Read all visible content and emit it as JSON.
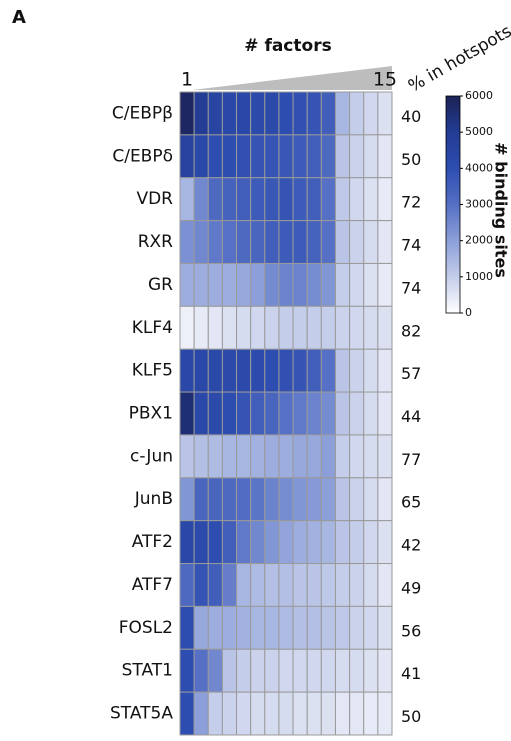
{
  "chart_data": {
    "type": "heatmap",
    "panel_label": "A",
    "title": "# factors",
    "columns": [
      1,
      null,
      null,
      null,
      null,
      null,
      null,
      null,
      null,
      null,
      null,
      null,
      null,
      null,
      15
    ],
    "rows": [
      "C/EBPβ",
      "C/EBPδ",
      "VDR",
      "RXR",
      "GR",
      "KLF4",
      "KLF5",
      "PBX1",
      "c-Jun",
      "JunB",
      "ATF2",
      "ATF7",
      "FOSL2",
      "STAT1",
      "STAT5A"
    ],
    "values": [
      [
        5800,
        5000,
        4500,
        4300,
        4300,
        4200,
        4200,
        4000,
        3900,
        3800,
        3500,
        1500,
        1000,
        800,
        600
      ],
      [
        4600,
        4300,
        4000,
        4000,
        3900,
        3800,
        3800,
        3700,
        3600,
        3500,
        3200,
        1200,
        900,
        700,
        500
      ],
      [
        1500,
        2500,
        3200,
        3400,
        3500,
        3600,
        3700,
        3800,
        3600,
        3500,
        3000,
        1100,
        800,
        600,
        400
      ],
      [
        2300,
        2500,
        2800,
        3000,
        3200,
        3300,
        3500,
        3600,
        3600,
        3400,
        3000,
        1200,
        900,
        700,
        500
      ],
      [
        1700,
        1700,
        1700,
        1700,
        1800,
        2000,
        2400,
        2600,
        2600,
        2400,
        2200,
        1000,
        800,
        600,
        400
      ],
      [
        300,
        400,
        500,
        600,
        700,
        800,
        900,
        1000,
        1000,
        1000,
        1000,
        900,
        800,
        700,
        600
      ],
      [
        4300,
        4300,
        4300,
        4200,
        4200,
        4100,
        4000,
        3900,
        3800,
        3500,
        3000,
        1200,
        900,
        700,
        500
      ],
      [
        5500,
        4300,
        4200,
        4000,
        3800,
        3500,
        3300,
        3000,
        2800,
        2600,
        2400,
        1200,
        900,
        700,
        500
      ],
      [
        1200,
        1300,
        1400,
        1500,
        1500,
        1600,
        1700,
        1700,
        1800,
        1800,
        2000,
        1000,
        800,
        700,
        600
      ],
      [
        2200,
        3300,
        3300,
        3200,
        3100,
        2900,
        2600,
        2400,
        2200,
        2100,
        2000,
        1200,
        900,
        700,
        500
      ],
      [
        4300,
        4200,
        4000,
        3500,
        2800,
        2500,
        2200,
        1900,
        1700,
        1600,
        1500,
        1200,
        1000,
        800,
        600
      ],
      [
        3200,
        3800,
        3500,
        2700,
        1500,
        1400,
        1300,
        1300,
        1200,
        1200,
        1100,
        1000,
        900,
        700,
        500
      ],
      [
        4000,
        1800,
        1700,
        1700,
        1600,
        1500,
        1500,
        1400,
        1300,
        1300,
        1200,
        1100,
        900,
        800,
        600
      ],
      [
        4000,
        3000,
        2500,
        1200,
        1000,
        900,
        900,
        800,
        800,
        800,
        800,
        700,
        700,
        600,
        500
      ],
      [
        4000,
        2000,
        1000,
        900,
        800,
        700,
        700,
        700,
        600,
        600,
        600,
        500,
        500,
        400,
        400
      ]
    ],
    "hotspots": {
      "label": "% in hotspots",
      "values": [
        40,
        50,
        72,
        74,
        74,
        82,
        57,
        44,
        77,
        65,
        42,
        49,
        56,
        41,
        50
      ]
    },
    "colorbar": {
      "label": "# binding sites",
      "clim": [
        0,
        6000
      ],
      "ticks": [
        0,
        1000,
        2000,
        3000,
        4000,
        5000,
        6000
      ],
      "colors": [
        "#ffffff",
        "#c4cdea",
        "#8c9fd9",
        "#5570c4",
        "#2d4db0",
        "#233c94",
        "#1b2255"
      ]
    }
  }
}
